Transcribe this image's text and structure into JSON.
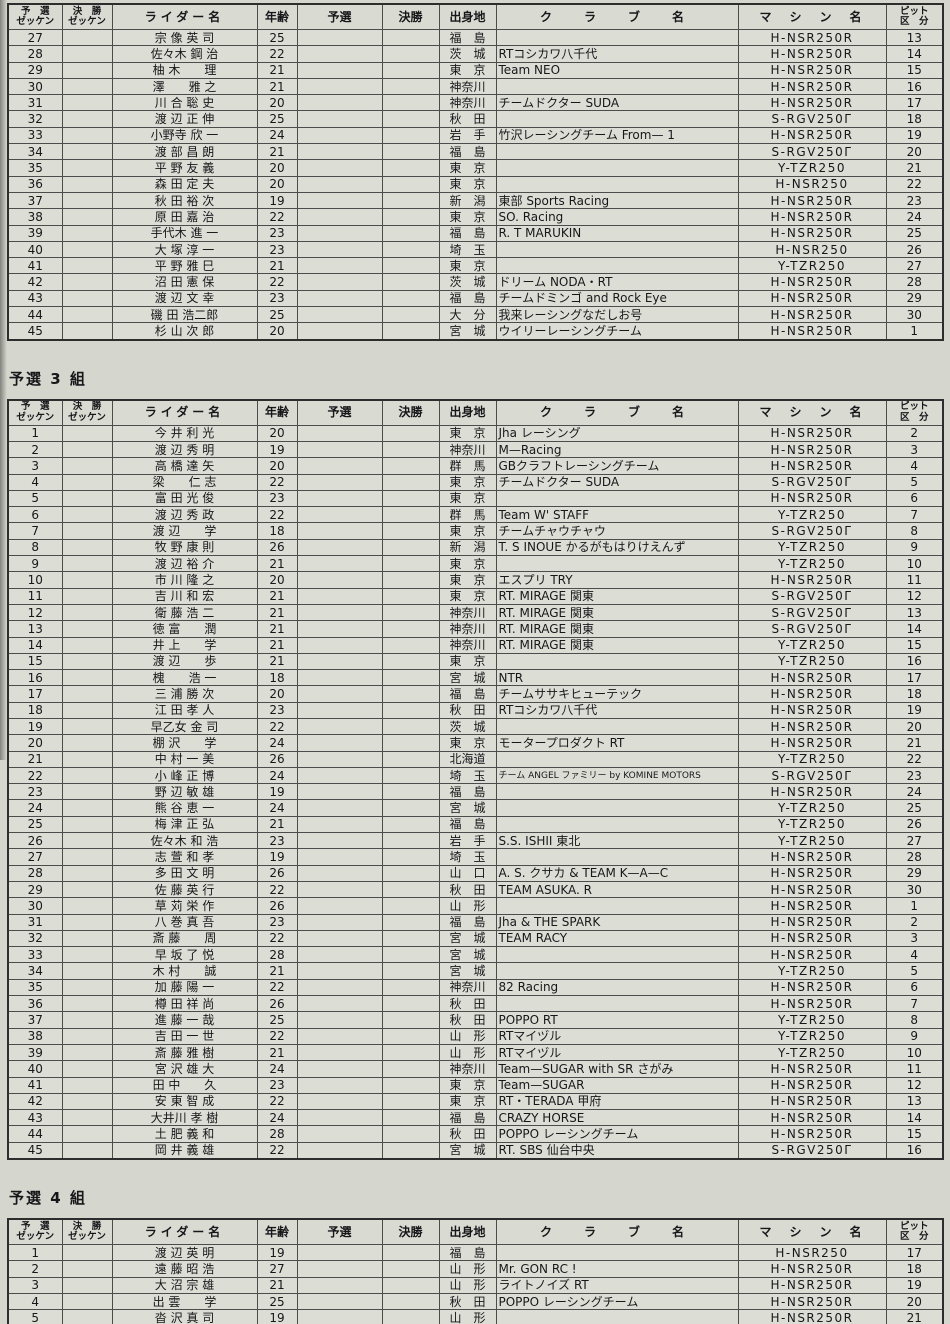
{
  "colors": {
    "page_bg": "#d5d7cf",
    "cell_bg": "#dcded6",
    "grid_line": "#4c4c4c",
    "outer_line": "#2d2d2d",
    "text": "#17171a"
  },
  "columns": [
    {
      "key": "qual_zekken",
      "line1": "予　選",
      "line2": "ゼッケン"
    },
    {
      "key": "final_zekken",
      "line1": "決　勝",
      "line2": "ゼッケン"
    },
    {
      "key": "rider_name",
      "line1": "ライダー名"
    },
    {
      "key": "age",
      "line1": "年齢"
    },
    {
      "key": "qual_time",
      "line1": "予選"
    },
    {
      "key": "final_time",
      "line1": "決勝"
    },
    {
      "key": "origin",
      "line1": "出身地"
    },
    {
      "key": "club",
      "line1": "ク　ラ　ブ　名"
    },
    {
      "key": "machine",
      "line1": "マ　シ　ン　名"
    },
    {
      "key": "pit",
      "line1": "ピット",
      "line2": "区　分"
    }
  ],
  "row_fields": [
    "qual_zekken",
    "final_zekken",
    "rider_name",
    "age",
    "qual_time",
    "final_time",
    "origin",
    "club",
    "machine",
    "pit"
  ],
  "sections": [
    {
      "title": "",
      "rows": [
        [
          "27",
          "",
          "宗 像 英 司",
          "25",
          "",
          "",
          "福　島",
          "",
          "H-NSR250R",
          "13"
        ],
        [
          "28",
          "",
          "佐々木 鋼 治",
          "22",
          "",
          "",
          "茨　城",
          "RTコシカワ八千代",
          "H-NSR250R",
          "14"
        ],
        [
          "29",
          "",
          "柚 木　　理",
          "21",
          "",
          "",
          "東　京",
          "Team NEO",
          "H-NSR250R",
          "15"
        ],
        [
          "30",
          "",
          "澤　　雅 之",
          "21",
          "",
          "",
          "神奈川",
          "",
          "H-NSR250R",
          "16"
        ],
        [
          "31",
          "",
          "川 合 聡 史",
          "20",
          "",
          "",
          "神奈川",
          "チームドクター SUDA",
          "H-NSR250R",
          "17"
        ],
        [
          "32",
          "",
          "渡 辺 正 伸",
          "25",
          "",
          "",
          "秋　田",
          "",
          "S-RGV250Γ",
          "18"
        ],
        [
          "33",
          "",
          "小野寺 欣 一",
          "24",
          "",
          "",
          "岩　手",
          "竹沢レーシングチーム From— 1",
          "H-NSR250R",
          "19"
        ],
        [
          "34",
          "",
          "渡 部 昌 朗",
          "21",
          "",
          "",
          "福　島",
          "",
          "S-RGV250Γ",
          "20"
        ],
        [
          "35",
          "",
          "平 野 友 義",
          "20",
          "",
          "",
          "東　京",
          "",
          "Y-TZR250",
          "21"
        ],
        [
          "36",
          "",
          "森 田 定 夫",
          "20",
          "",
          "",
          "東　京",
          "",
          "H-NSR250",
          "22"
        ],
        [
          "37",
          "",
          "秋 田 裕 次",
          "19",
          "",
          "",
          "新　潟",
          "東部 Sports Racing",
          "H-NSR250R",
          "23"
        ],
        [
          "38",
          "",
          "原 田 嘉 治",
          "22",
          "",
          "",
          "東　京",
          "SO. Racing",
          "H-NSR250R",
          "24"
        ],
        [
          "39",
          "",
          "手代木 進 一",
          "23",
          "",
          "",
          "福　島",
          "R. T MARUKIN",
          "H-NSR250R",
          "25"
        ],
        [
          "40",
          "",
          "大 塚 淳 一",
          "23",
          "",
          "",
          "埼　玉",
          "",
          "H-NSR250",
          "26"
        ],
        [
          "41",
          "",
          "平 野 雅 巳",
          "21",
          "",
          "",
          "東　京",
          "",
          "Y-TZR250",
          "27"
        ],
        [
          "42",
          "",
          "沼 田 憲 保",
          "22",
          "",
          "",
          "茨　城",
          "ドリーム NODA・RT",
          "H-NSR250R",
          "28"
        ],
        [
          "43",
          "",
          "渡 辺 文 幸",
          "23",
          "",
          "",
          "福　島",
          "チームドミンゴ and Rock Eye",
          "H-NSR250R",
          "29"
        ],
        [
          "44",
          "",
          "磯 田 浩二郎",
          "25",
          "",
          "",
          "大　分",
          "我来レーシングなだしお号",
          "H-NSR250R",
          "30"
        ],
        [
          "45",
          "",
          "杉 山 次 郎",
          "20",
          "",
          "",
          "宮　城",
          "ウイリーレーシングチーム",
          "H-NSR250R",
          "1"
        ]
      ]
    },
    {
      "title": "予選 3 組",
      "rows": [
        [
          "1",
          "",
          "今 井 利 光",
          "20",
          "",
          "",
          "東　京",
          "Jha レーシング",
          "H-NSR250R",
          "2"
        ],
        [
          "2",
          "",
          "渡 辺 秀 明",
          "19",
          "",
          "",
          "神奈川",
          "M—Racing",
          "H-NSR250R",
          "3"
        ],
        [
          "3",
          "",
          "高 橋 達 矢",
          "20",
          "",
          "",
          "群　馬",
          "GBクラフトレーシングチーム",
          "H-NSR250R",
          "4"
        ],
        [
          "4",
          "",
          "梁　　仁 志",
          "22",
          "",
          "",
          "東　京",
          "チームドクター SUDA",
          "S-RGV250Γ",
          "5"
        ],
        [
          "5",
          "",
          "富 田 光 俊",
          "23",
          "",
          "",
          "東　京",
          "",
          "H-NSR250R",
          "6"
        ],
        [
          "6",
          "",
          "渡 辺 秀 政",
          "22",
          "",
          "",
          "群　馬",
          "Team W' STAFF",
          "Y-TZR250",
          "7"
        ],
        [
          "7",
          "",
          "渡 辺　　学",
          "18",
          "",
          "",
          "東　京",
          "チームチャウチャウ",
          "S-RGV250Γ",
          "8"
        ],
        [
          "8",
          "",
          "牧 野 康 則",
          "26",
          "",
          "",
          "新　潟",
          "T. S INOUE かるがもはりけえんず",
          "Y-TZR250",
          "9"
        ],
        [
          "9",
          "",
          "渡 辺 裕 介",
          "21",
          "",
          "",
          "東　京",
          "",
          "Y-TZR250",
          "10"
        ],
        [
          "10",
          "",
          "市 川 隆 之",
          "20",
          "",
          "",
          "東　京",
          "エスプリ TRY",
          "H-NSR250R",
          "11"
        ],
        [
          "11",
          "",
          "吉 川 和 宏",
          "21",
          "",
          "",
          "東　京",
          "RT. MIRAGE 関東",
          "S-RGV250Γ",
          "12"
        ],
        [
          "12",
          "",
          "衛 藤 浩 二",
          "21",
          "",
          "",
          "神奈川",
          "RT. MIRAGE 関東",
          "S-RGV250Γ",
          "13"
        ],
        [
          "13",
          "",
          "徳 富　　潤",
          "21",
          "",
          "",
          "神奈川",
          "RT. MIRAGE 関東",
          "S-RGV250Γ",
          "14"
        ],
        [
          "14",
          "",
          "井 上　　学",
          "21",
          "",
          "",
          "神奈川",
          "RT. MIRAGE 関東",
          "Y-TZR250",
          "15"
        ],
        [
          "15",
          "",
          "渡 辺　　歩",
          "21",
          "",
          "",
          "東　京",
          "",
          "Y-TZR250",
          "16"
        ],
        [
          "16",
          "",
          "槐　　浩 一",
          "18",
          "",
          "",
          "宮　城",
          "NTR",
          "H-NSR250R",
          "17"
        ],
        [
          "17",
          "",
          "三 浦 勝 次",
          "20",
          "",
          "",
          "福　島",
          "チームササキヒューテック",
          "H-NSR250R",
          "18"
        ],
        [
          "18",
          "",
          "江 田 孝 人",
          "23",
          "",
          "",
          "秋　田",
          "RTコシカワ八千代",
          "H-NSR250R",
          "19"
        ],
        [
          "19",
          "",
          "早乙女 金 司",
          "22",
          "",
          "",
          "茨　城",
          "",
          "H-NSR250R",
          "20"
        ],
        [
          "20",
          "",
          "棚 沢　　学",
          "24",
          "",
          "",
          "東　京",
          "モータープロダクト RT",
          "H-NSR250R",
          "21"
        ],
        [
          "21",
          "",
          "中 村 一 美",
          "26",
          "",
          "",
          "北海道",
          "",
          "Y-TZR250",
          "22"
        ],
        [
          "22",
          "",
          "小 峰 正 博",
          "24",
          "",
          "",
          "埼　玉",
          "チーム ANGEL ファミリー by KOMINE MOTORS",
          "S-RGV250Γ",
          "23"
        ],
        [
          "23",
          "",
          "野 辺 敏 雄",
          "19",
          "",
          "",
          "福　島",
          "",
          "H-NSR250R",
          "24"
        ],
        [
          "24",
          "",
          "熊 谷 恵 一",
          "24",
          "",
          "",
          "宮　城",
          "",
          "Y-TZR250",
          "25"
        ],
        [
          "25",
          "",
          "梅 津 正 弘",
          "21",
          "",
          "",
          "福　島",
          "",
          "Y-TZR250",
          "26"
        ],
        [
          "26",
          "",
          "佐々木 和 浩",
          "23",
          "",
          "",
          "岩　手",
          "S.S. ISHII 東北",
          "Y-TZR250",
          "27"
        ],
        [
          "27",
          "",
          "志 萱 和 孝",
          "19",
          "",
          "",
          "埼　玉",
          "",
          "H-NSR250R",
          "28"
        ],
        [
          "28",
          "",
          "多 田 文 明",
          "26",
          "",
          "",
          "山　口",
          "A. S. クサカ & TEAM K—A—C",
          "H-NSR250R",
          "29"
        ],
        [
          "29",
          "",
          "佐 藤 英 行",
          "22",
          "",
          "",
          "秋　田",
          "TEAM ASUKA. R",
          "H-NSR250R",
          "30"
        ],
        [
          "30",
          "",
          "草 苅 栄 作",
          "26",
          "",
          "",
          "山　形",
          "",
          "H-NSR250R",
          "1"
        ],
        [
          "31",
          "",
          "八 巻 真 吾",
          "23",
          "",
          "",
          "福　島",
          "Jha & THE SPARK",
          "H-NSR250R",
          "2"
        ],
        [
          "32",
          "",
          "斎 藤　　周",
          "22",
          "",
          "",
          "宮　城",
          "TEAM RACY",
          "H-NSR250R",
          "3"
        ],
        [
          "33",
          "",
          "早 坂 了 悦",
          "28",
          "",
          "",
          "宮　城",
          "",
          "H-NSR250R",
          "4"
        ],
        [
          "34",
          "",
          "木 村　　誠",
          "21",
          "",
          "",
          "宮　城",
          "",
          "Y-TZR250",
          "5"
        ],
        [
          "35",
          "",
          "加 藤 陽 一",
          "22",
          "",
          "",
          "神奈川",
          "82 Racing",
          "H-NSR250R",
          "6"
        ],
        [
          "36",
          "",
          "樽 田 祥 尚",
          "26",
          "",
          "",
          "秋　田",
          "",
          "H-NSR250R",
          "7"
        ],
        [
          "37",
          "",
          "進 藤 一 哉",
          "25",
          "",
          "",
          "秋　田",
          "POPPO RT",
          "Y-TZR250",
          "8"
        ],
        [
          "38",
          "",
          "吉 田 一 世",
          "22",
          "",
          "",
          "山　形",
          "RTマイヅル",
          "Y-TZR250",
          "9"
        ],
        [
          "39",
          "",
          "斎 藤 雅 樹",
          "21",
          "",
          "",
          "山　形",
          "RTマイヅル",
          "Y-TZR250",
          "10"
        ],
        [
          "40",
          "",
          "宮 沢 雄 大",
          "24",
          "",
          "",
          "神奈川",
          "Team—SUGAR with SR さがみ",
          "H-NSR250R",
          "11"
        ],
        [
          "41",
          "",
          "田 中　　久",
          "23",
          "",
          "",
          "東　京",
          "Team—SUGAR",
          "H-NSR250R",
          "12"
        ],
        [
          "42",
          "",
          "安 東 智 成",
          "22",
          "",
          "",
          "東　京",
          "RT・TERADA 甲府",
          "H-NSR250R",
          "13"
        ],
        [
          "43",
          "",
          "大井川 孝 樹",
          "24",
          "",
          "",
          "福　島",
          "CRAZY HORSE",
          "H-NSR250R",
          "14"
        ],
        [
          "44",
          "",
          "土 肥 義 和",
          "28",
          "",
          "",
          "秋　田",
          "POPPO レーシングチーム",
          "H-NSR250R",
          "15"
        ],
        [
          "45",
          "",
          "岡 井 義 雄",
          "22",
          "",
          "",
          "宮　城",
          "RT. SBS 仙台中央",
          "S-RGV250Γ",
          "16"
        ]
      ]
    },
    {
      "title": "予選 4 組",
      "rows": [
        [
          "1",
          "",
          "渡 辺 英 明",
          "19",
          "",
          "",
          "福　島",
          "",
          "H-NSR250",
          "17"
        ],
        [
          "2",
          "",
          "遠 藤 昭 浩",
          "27",
          "",
          "",
          "山　形",
          "Mr. GON RC !",
          "H-NSR250R",
          "18"
        ],
        [
          "3",
          "",
          "大 沼 宗 雄",
          "21",
          "",
          "",
          "山　形",
          "ライトノイズ RT",
          "H-NSR250R",
          "19"
        ],
        [
          "4",
          "",
          "出 雲　　学",
          "25",
          "",
          "",
          "秋　田",
          "POPPO レーシングチーム",
          "H-NSR250R",
          "20"
        ],
        [
          "5",
          "",
          "沓 沢 真 司",
          "19",
          "",
          "",
          "山　形",
          "",
          "H-NSR250R",
          "21"
        ]
      ]
    }
  ]
}
